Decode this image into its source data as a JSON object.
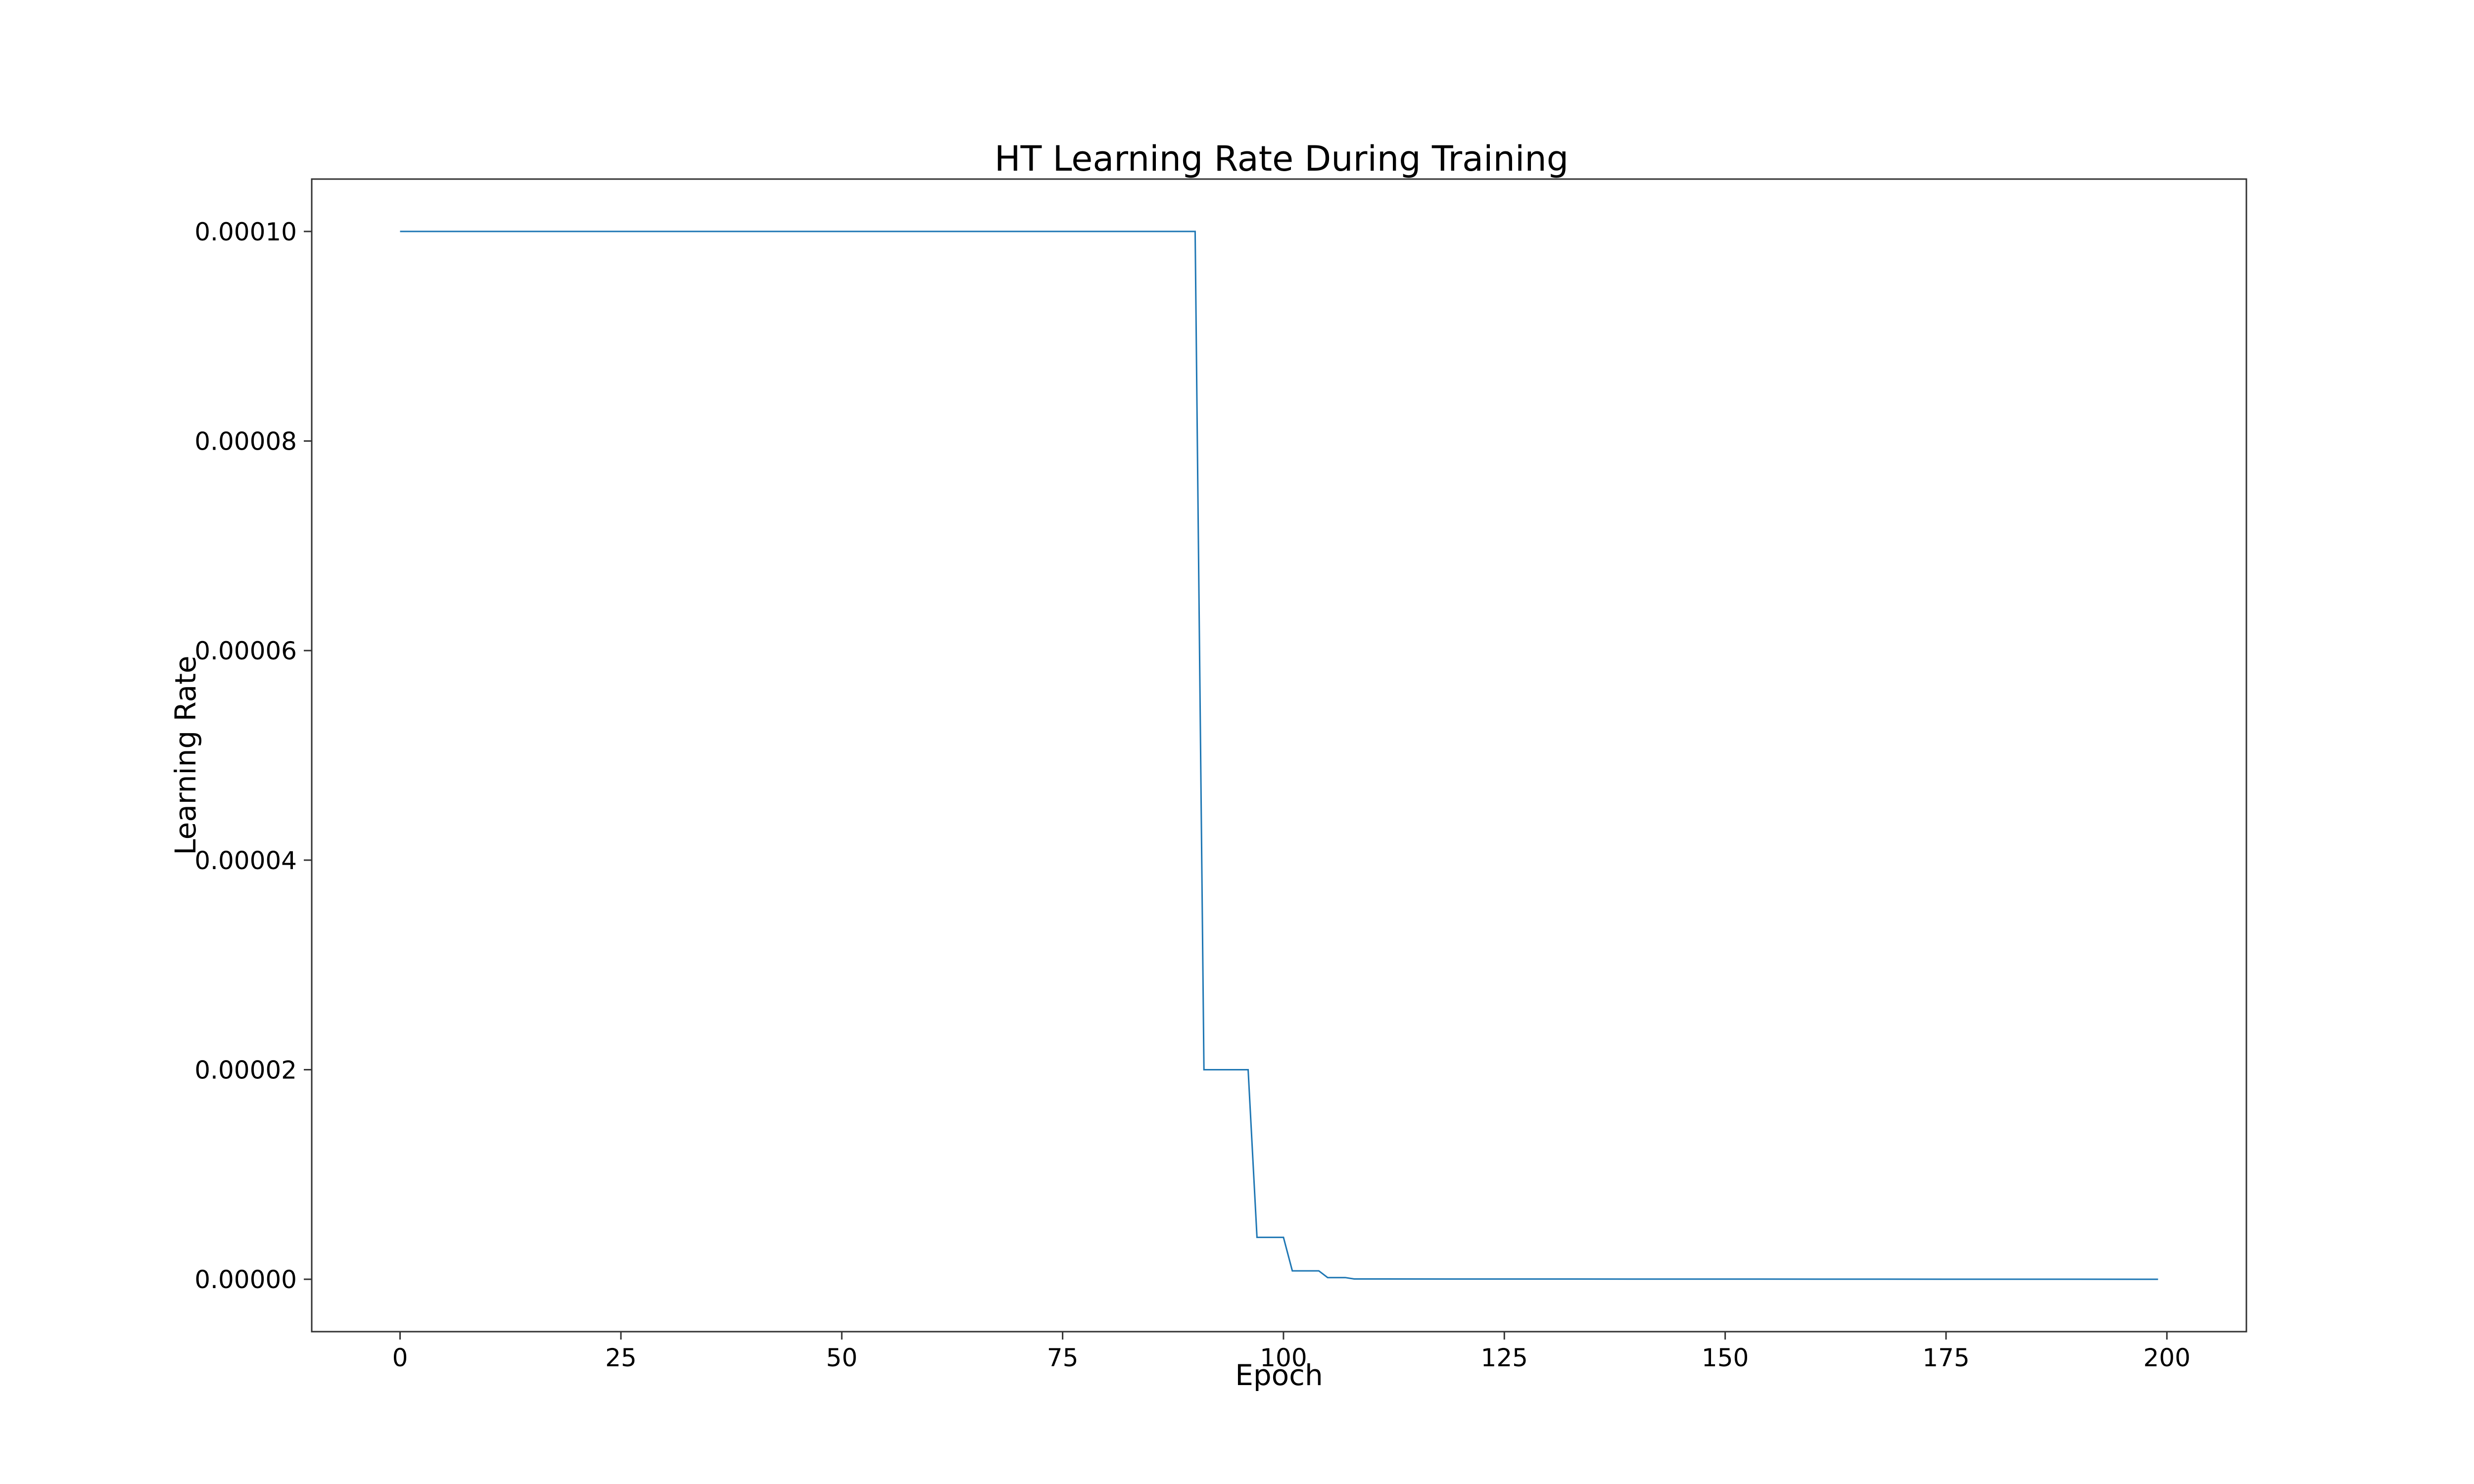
{
  "chart_data": {
    "type": "line",
    "title": "HT Learning Rate During Training",
    "xlabel": "Epoch",
    "ylabel": "Learning Rate",
    "xlim": [
      -10,
      209
    ],
    "ylim": [
      -5e-06,
      0.000105
    ],
    "x_ticks": [
      0,
      25,
      50,
      75,
      100,
      125,
      150,
      175,
      200
    ],
    "x_tick_labels": [
      "0",
      "25",
      "50",
      "75",
      "100",
      "125",
      "150",
      "175",
      "200"
    ],
    "y_ticks": [
      0.0,
      2e-05,
      4e-05,
      6e-05,
      8e-05,
      0.0001
    ],
    "y_tick_labels": [
      "0.00000",
      "0.00002",
      "0.00004",
      "0.00006",
      "0.00008",
      "0.00010"
    ],
    "grid": false,
    "legend": "none",
    "series": [
      {
        "color": "#1f77b4",
        "x": [
          0,
          90,
          91,
          96,
          97,
          100,
          101,
          104,
          105,
          107,
          108,
          199
        ],
        "y": [
          0.0001,
          0.0001,
          2e-05,
          2e-05,
          4e-06,
          4e-06,
          8e-07,
          8e-07,
          1.6e-07,
          1.6e-07,
          3e-08,
          0.0
        ]
      }
    ]
  }
}
